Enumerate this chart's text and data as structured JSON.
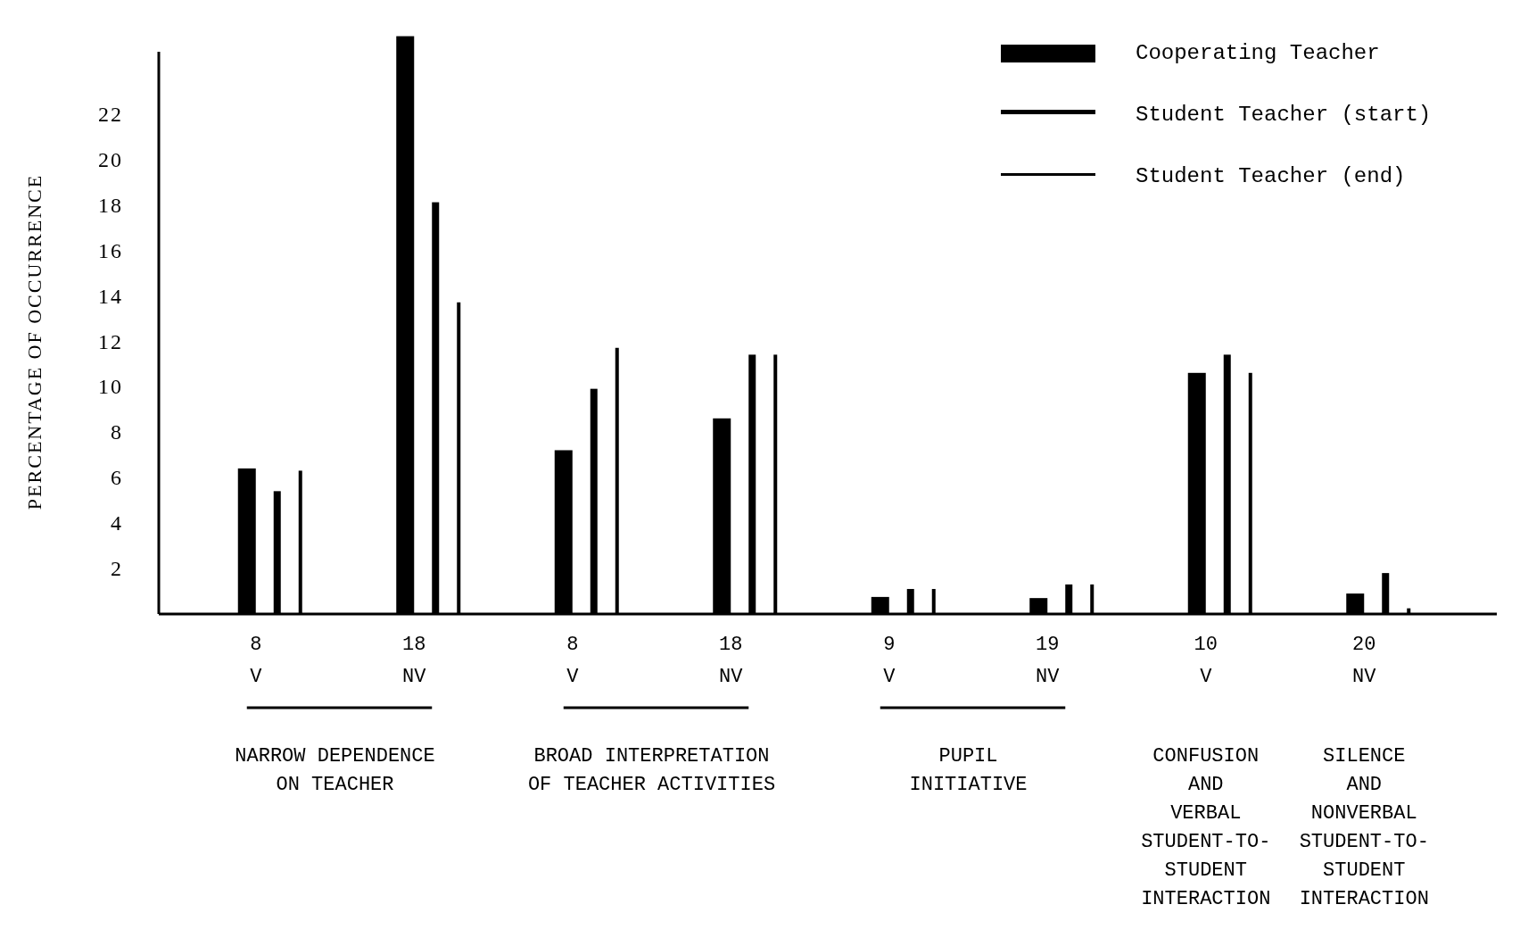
{
  "chart_data": {
    "type": "bar",
    "ylabel": "PERCENTAGE OF OCCURRENCE",
    "categories": [
      "8\nV",
      "18\nNV",
      "8\nV",
      "18\nNV",
      "9\nV",
      "19\nNV",
      "10\nV",
      "20\nNV"
    ],
    "series": [
      {
        "name": "Cooperating Teacher",
        "color": "#000000",
        "values": [
          6.4,
          25.4,
          7.2,
          8.6,
          0.75,
          0.7,
          10.6,
          0.9
        ]
      },
      {
        "name": "Student Teacher (start)",
        "color": "#000000",
        "values": [
          5.4,
          18.1,
          9.9,
          11.4,
          1.1,
          1.3,
          11.4,
          1.8
        ]
      },
      {
        "name": "Student Teacher (end)",
        "color": "#000000",
        "values": [
          6.3,
          13.7,
          11.7,
          11.4,
          1.1,
          1.3,
          10.6,
          0.25
        ]
      }
    ],
    "ylim": [
      0,
      25.5
    ],
    "yticks": [
      2,
      4,
      6,
      8,
      10,
      12,
      14,
      16,
      18,
      20,
      22
    ],
    "grid": false,
    "legend": "top right",
    "annotations": [
      "NARROW DEPENDENCE\nON TEACHER",
      "BROAD INTERPRETATION\nOF TEACHER ACTIVITIES",
      "PUPIL\nINITIATIVE",
      "CONFUSION\nAND\nVERBAL\nSTUDENT-TO-\nSTUDENT\nINTERACTION",
      "SILENCE\nAND\nNONVERBAL\nSTUDENT-TO-\nSTUDENT\nINTERACTION"
    ]
  }
}
